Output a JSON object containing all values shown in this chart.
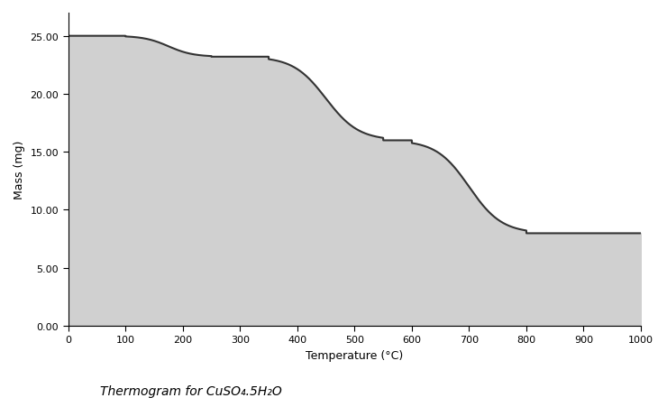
{
  "title_text": "Thermogram for CuSO₄.5H₂O",
  "xlabel": "Temperature (°C)",
  "ylabel": "Mass (mg)",
  "xlim": [
    0,
    1000
  ],
  "ylim": [
    0.0,
    27.0
  ],
  "yticks": [
    0.0,
    5.0,
    10.0,
    15.0,
    20.0,
    25.0
  ],
  "xticks": [
    0,
    100,
    200,
    300,
    400,
    500,
    600,
    700,
    800,
    900,
    1000
  ],
  "initial_mass": 25.0,
  "loss1": 1.8,
  "loss2": 7.212,
  "loss3": 8.015,
  "drop1_start": 100,
  "drop1_end": 250,
  "plateau1_end": 350,
  "drop2_start": 350,
  "drop2_end": 550,
  "plateau2_end": 600,
  "drop3_start": 600,
  "drop3_end": 800,
  "final_end": 1000,
  "line_color": "#333333",
  "fill_color": "#d0d0d0",
  "background_color": "#ffffff",
  "fig_width": 7.4,
  "fig_height": 4.52,
  "dpi": 100
}
